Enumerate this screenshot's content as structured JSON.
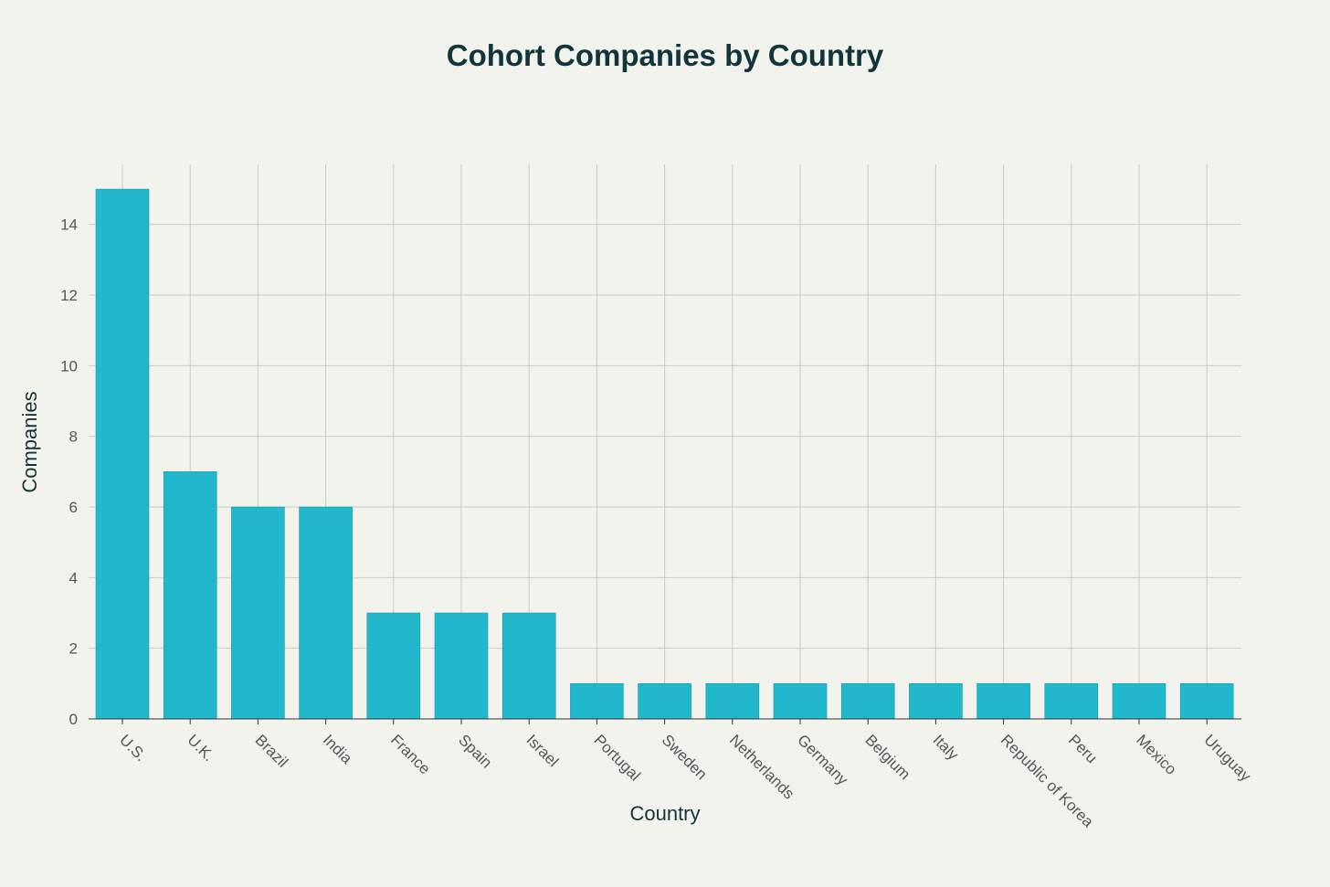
{
  "chart_data": {
    "type": "bar",
    "title": "Cohort Companies by Country",
    "xlabel": "Country",
    "ylabel": "Companies",
    "categories": [
      "U.S.",
      "U.K.",
      "Brazil",
      "India",
      "France",
      "Spain",
      "Israel",
      "Portugal",
      "Sweden",
      "Netherlands",
      "Germany",
      "Belgium",
      "Italy",
      "Republic of Korea",
      "Peru",
      "Mexico",
      "Uruguay"
    ],
    "values": [
      15,
      7,
      6,
      6,
      3,
      3,
      3,
      1,
      1,
      1,
      1,
      1,
      1,
      1,
      1,
      1,
      1
    ],
    "ylim": [
      0,
      15.7
    ],
    "yticks": [
      0,
      2,
      4,
      6,
      8,
      10,
      12,
      14
    ],
    "grid": true,
    "bar_color": "#21b8cd",
    "bar_outline": "#1a9aa8"
  }
}
